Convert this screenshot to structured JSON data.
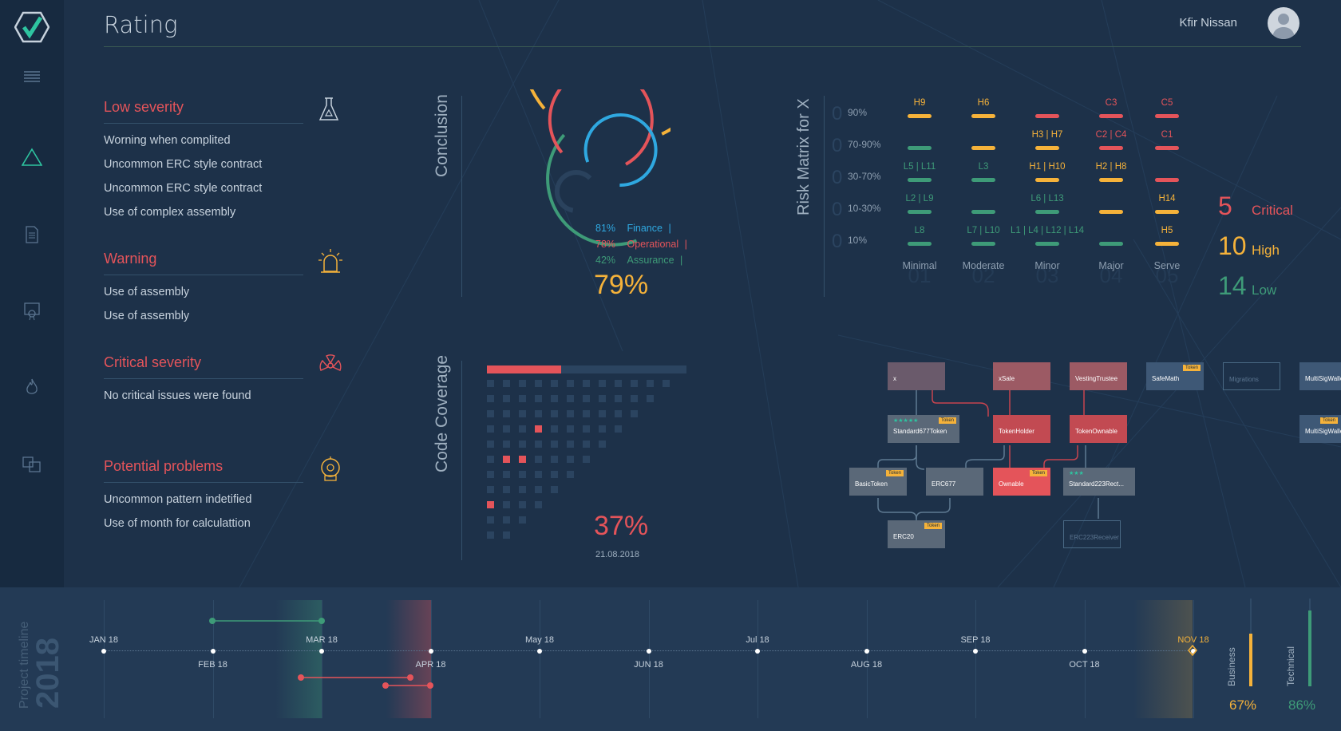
{
  "app": {
    "title": "Rating",
    "user": "Kfir Nissan"
  },
  "sidebar": {
    "items": [
      "logo-icon",
      "menu-icon",
      "triangle-icon",
      "document-icon",
      "certificate-icon",
      "fire-icon",
      "compare-icon"
    ]
  },
  "issues": [
    {
      "title": "Low severity",
      "icon": "flask-icon",
      "color": "#e4545a",
      "items": [
        "Worning when complited",
        "Uncommon ERC style contract",
        "Uncommon ERC style contract",
        "Use of complex assembly"
      ]
    },
    {
      "title": "Warning",
      "icon": "siren-icon",
      "color": "#e4545a",
      "items": [
        "Use of assembly",
        "Use of assembly"
      ]
    },
    {
      "title": "Critical severity",
      "icon": "radiation-icon",
      "color": "#e4545a",
      "items": [
        "No critical issues were found"
      ]
    },
    {
      "title": "Potential problems",
      "icon": "alarm-icon",
      "color": "#e4545a",
      "items": [
        "Uncommon pattern indetified",
        "Use of month for calculattion"
      ]
    }
  ],
  "conclusion": {
    "label": "Conclusion",
    "total": "79%",
    "metrics": [
      {
        "pct": "81%",
        "name": "Finance",
        "color": "#2fa8e0",
        "value": 0.81
      },
      {
        "pct": "78%",
        "name": "Operational",
        "color": "#e4545a",
        "value": 0.78
      },
      {
        "pct": "42%",
        "name": "Assurance",
        "color": "#3e9b78",
        "value": 0.42
      }
    ],
    "total_value": 0.79,
    "sep": "|"
  },
  "risk_matrix": {
    "label": "Risk Matrix for X",
    "rows": [
      "90%",
      "70-90%",
      "30-70%",
      "10-30%",
      "10%"
    ],
    "cols": [
      {
        "name": "Minimal",
        "num": "01"
      },
      {
        "name": "Moderate",
        "num": "02"
      },
      {
        "name": "Minor",
        "num": "03"
      },
      {
        "name": "Major",
        "num": "04"
      },
      {
        "name": "Serve",
        "num": "05"
      }
    ],
    "row_nums": [
      "0",
      "0",
      "0",
      "0",
      "0"
    ],
    "cells": [
      [
        {
          "t": "H9",
          "c": "#f5b23a"
        },
        {
          "t": "H6",
          "c": "#f5b23a"
        },
        {
          "t": "",
          "c": "#e4545a"
        },
        {
          "t": "C3",
          "c": "#e4545a"
        },
        {
          "t": "C5",
          "c": "#e4545a"
        }
      ],
      [
        {
          "t": "",
          "c": "#3e9b78"
        },
        {
          "t": "",
          "c": "#f5b23a"
        },
        {
          "t": "H3 | H7",
          "c": "#f5b23a"
        },
        {
          "t": "C2 | C4",
          "c": "#e4545a"
        },
        {
          "t": "C1",
          "c": "#e4545a"
        }
      ],
      [
        {
          "t": "L5 | L11",
          "c": "#3e9b78"
        },
        {
          "t": "L3",
          "c": "#3e9b78"
        },
        {
          "t": "H1 | H10",
          "c": "#f5b23a"
        },
        {
          "t": "H2 | H8",
          "c": "#f5b23a"
        },
        {
          "t": "",
          "c": "#e4545a"
        }
      ],
      [
        {
          "t": "L2 | L9",
          "c": "#3e9b78"
        },
        {
          "t": "",
          "c": "#3e9b78"
        },
        {
          "t": "L6 | L13",
          "c": "#3e9b78"
        },
        {
          "t": "",
          "c": "#f5b23a"
        },
        {
          "t": "H14",
          "c": "#f5b23a"
        }
      ],
      [
        {
          "t": "L8",
          "c": "#3e9b78"
        },
        {
          "t": "L7 | L10",
          "c": "#3e9b78"
        },
        {
          "t": "L1 | L4 | L12 | L14",
          "c": "#3e9b78"
        },
        {
          "t": "",
          "c": "#3e9b78"
        },
        {
          "t": "H5",
          "c": "#f5b23a"
        }
      ]
    ]
  },
  "severity_counts": [
    {
      "num": "5",
      "label": "Critical",
      "color": "#e4545a"
    },
    {
      "num": "10",
      "label": "High",
      "color": "#f5b23a"
    },
    {
      "num": "14",
      "label": "Low",
      "color": "#3e9b78"
    }
  ],
  "coverage": {
    "label": "Code Coverage",
    "pct": "37%",
    "date": "21.08.2018",
    "value": 0.37
  },
  "graph": {
    "nodes": [
      {
        "id": "x",
        "label": "x",
        "tag": "",
        "style": "dim"
      },
      {
        "id": "xsale",
        "label": "xSale",
        "tag": "",
        "style": "rose"
      },
      {
        "id": "vesting",
        "label": "VestingTrustee",
        "tag": "",
        "style": "rose"
      },
      {
        "id": "safemath",
        "label": "SafeMath",
        "tag": "Token",
        "style": "slate"
      },
      {
        "id": "migrations",
        "label": "Migrations",
        "tag": "",
        "style": "ghost"
      },
      {
        "id": "multisig1",
        "label": "MultiSigWallet",
        "tag": "",
        "style": "slate"
      },
      {
        "id": "standard677",
        "label": "Standard677Token",
        "tag": "Token",
        "style": "gray",
        "stars": "★★★★★"
      },
      {
        "id": "tokenholder",
        "label": "TokenHolder",
        "tag": "",
        "style": "red"
      },
      {
        "id": "tokenownable",
        "label": "TokenOwnable",
        "tag": "",
        "style": "red"
      },
      {
        "id": "multisig2",
        "label": "MultiSigWallet",
        "tag": "Token",
        "style": "slate"
      },
      {
        "id": "basictoken",
        "label": "BasicToken",
        "tag": "Token",
        "style": "gray"
      },
      {
        "id": "erc677",
        "label": "ERC677",
        "tag": "",
        "style": "gray"
      },
      {
        "id": "ownable",
        "label": "Ownable",
        "tag": "Token",
        "style": "bright"
      },
      {
        "id": "standard223",
        "label": "Standard223Rect...",
        "tag": "",
        "style": "gray",
        "stars": "★★★"
      },
      {
        "id": "erc20",
        "label": "ERC20",
        "tag": "Token",
        "style": "gray"
      },
      {
        "id": "erc223",
        "label": "ERC223Receiver",
        "tag": "",
        "style": "ghost"
      }
    ]
  },
  "timeline": {
    "label": "Project timeline",
    "year": "2018",
    "months_top": [
      "JAN 18",
      "MAR 18",
      "May 18",
      "Jul 18",
      "SEP 18",
      "NOV 18"
    ],
    "months_bottom": [
      "FEB 18",
      "APR 18",
      "JUN 18",
      "AUG 18",
      "OCT 18"
    ],
    "gauges": [
      {
        "label": "Business",
        "pct": "67%",
        "color": "#f5b23a",
        "value": 0.67
      },
      {
        "label": "Technical",
        "pct": "86%",
        "color": "#3e9b78",
        "value": 0.86
      }
    ]
  }
}
